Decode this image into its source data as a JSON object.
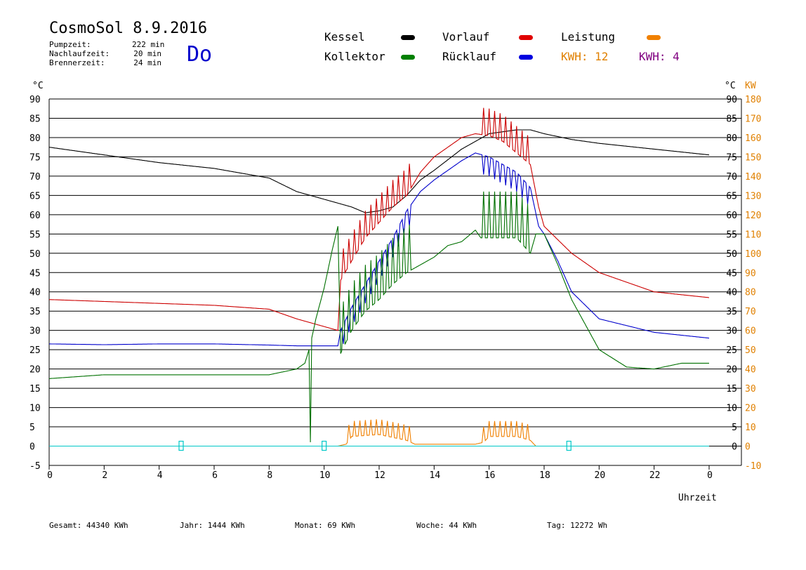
{
  "header": {
    "title": "CosmoSol 8.9.2016",
    "weekday": "Do",
    "stats": [
      {
        "label": "Pumpzeit:",
        "value": "222 min"
      },
      {
        "label": "Nachlaufzeit:",
        "value": "20 min"
      },
      {
        "label": "Brennerzeit:",
        "value": "24 min"
      }
    ]
  },
  "legend": {
    "kessel": {
      "label": "Kessel",
      "color": "#000000"
    },
    "kollektor": {
      "label": "Kollektor",
      "color": "#008000"
    },
    "vorlauf": {
      "label": "Vorlauf",
      "color": "#e00000"
    },
    "ruecklauf": {
      "label": "Rücklauf",
      "color": "#0000e0"
    },
    "leistung": {
      "label": "Leistung",
      "color": "#f08000"
    },
    "kwh_orange": "KWH: 12",
    "kwh_purple": "KWH: 4",
    "kwh_orange_color": "#e08000",
    "kwh_purple_color": "#800080"
  },
  "axes": {
    "left_unit": "°C",
    "right_unit": "°C",
    "right_unit_kw": "KW",
    "xlabel": "Uhrzeit"
  },
  "footer": {
    "gesamt": "Gesamt:  44340 KWh",
    "jahr": "Jahr:  1444 KWh",
    "monat": "Monat:    69 KWh",
    "woche": "Woche:    44 KWh",
    "tag": "Tag:  12272 Wh"
  },
  "chart_data": {
    "type": "line",
    "title": "CosmoSol 8.9.2016",
    "xlabel": "Uhrzeit",
    "ylabel": "°C",
    "xlim": [
      0,
      24
    ],
    "ylim": [
      -5,
      90
    ],
    "y2lim": [
      -10,
      180
    ],
    "y2label": "KW",
    "x_ticks": [
      "0",
      "2",
      "4",
      "6",
      "8",
      "10",
      "12",
      "14",
      "16",
      "18",
      "20",
      "22",
      "0"
    ],
    "y_ticks": [
      "-5",
      "0",
      "5",
      "10",
      "15",
      "20",
      "25",
      "30",
      "35",
      "40",
      "45",
      "50",
      "55",
      "60",
      "65",
      "70",
      "75",
      "80",
      "85",
      "90"
    ],
    "y_right_ticks": [
      "0",
      "5",
      "10",
      "15",
      "20",
      "25",
      "30",
      "35",
      "40",
      "45",
      "50",
      "55",
      "60",
      "65",
      "70",
      "75",
      "80",
      "85",
      "90"
    ],
    "y2_ticks": [
      "-10",
      "0",
      "10",
      "20",
      "30",
      "40",
      "50",
      "60",
      "70",
      "80",
      "90",
      "100",
      "110",
      "120",
      "130",
      "140",
      "150",
      "160",
      "170",
      "180"
    ],
    "grid": true,
    "series": [
      {
        "name": "Kessel",
        "color": "#000000",
        "x": [
          0,
          2,
          4,
          6,
          8,
          9,
          10,
          11,
          11.5,
          12,
          12.5,
          13,
          13.5,
          14,
          15,
          15.5,
          16,
          17,
          17.5,
          18,
          19,
          20,
          22,
          24
        ],
        "y": [
          77.5,
          75.5,
          73.5,
          72,
          69.5,
          66,
          64,
          62,
          60.5,
          61,
          62,
          65,
          69,
          71.5,
          77,
          79,
          81,
          82,
          82,
          81,
          79.5,
          78.5,
          77,
          75.5
        ],
        "spikes": [],
        "spike_amp": 0
      },
      {
        "name": "Vorlauf",
        "color": "#cc0000",
        "x": [
          0,
          2,
          4,
          6,
          8,
          9,
          10,
          10.5,
          10.6,
          11,
          11.5,
          12,
          12.5,
          13,
          13.5,
          14,
          15,
          15.5,
          16,
          16.5,
          17,
          17.5,
          17.8,
          18,
          19,
          20,
          22,
          24
        ],
        "y": [
          38,
          37.5,
          37,
          36.5,
          35.5,
          33,
          31,
          30,
          43,
          48,
          54,
          58,
          62,
          65,
          71,
          75,
          80,
          81,
          80.5,
          79,
          76,
          73,
          62,
          57,
          50,
          45,
          40,
          38.5
        ],
        "spikes": [
          10.7,
          10.9,
          11.1,
          11.3,
          11.5,
          11.7,
          11.9,
          12.1,
          12.3,
          12.5,
          12.7,
          12.9,
          13.1,
          15.8,
          16.0,
          16.2,
          16.4,
          16.6,
          16.8,
          17.0,
          17.2,
          17.4
        ],
        "spike_amp": 7
      },
      {
        "name": "Rücklauf",
        "color": "#0000cc",
        "x": [
          0,
          2,
          4,
          6,
          8,
          9,
          10,
          10.5,
          10.6,
          11,
          11.5,
          12,
          12.5,
          13,
          13.5,
          14,
          15,
          15.5,
          16,
          16.5,
          17,
          17.5,
          17.8,
          18,
          18.5,
          19,
          20,
          22,
          24
        ],
        "y": [
          26.5,
          26.3,
          26.5,
          26.5,
          26.2,
          26,
          26,
          26,
          30,
          36,
          42,
          48,
          54,
          61,
          66,
          69,
          74,
          76,
          75,
          73,
          71,
          67,
          57,
          55,
          48,
          40,
          33,
          29.5,
          28
        ],
        "spikes": [
          10.7,
          10.9,
          11.1,
          11.3,
          11.5,
          11.7,
          11.9,
          12.1,
          12.3,
          12.5,
          12.7,
          12.9,
          13.1,
          15.8,
          16.0,
          16.2,
          16.4,
          16.6,
          16.8,
          17.0,
          17.2,
          17.4
        ],
        "spike_amp": -5
      },
      {
        "name": "Kollektor",
        "color": "#007000",
        "x": [
          0,
          2,
          4,
          6,
          8,
          9,
          9.3,
          9.45,
          9.5,
          9.55,
          9.7,
          10,
          10.3,
          10.5,
          10.6,
          11,
          11.5,
          12,
          12.5,
          13,
          13.5,
          14,
          14.5,
          15,
          15.5,
          15.7,
          16,
          16.5,
          17,
          17.5,
          17.7,
          18,
          18.5,
          19,
          20,
          21,
          22,
          23,
          24
        ],
        "y": [
          17.5,
          18.5,
          18.5,
          18.5,
          18.5,
          20,
          21.5,
          25,
          1,
          28,
          33,
          41,
          51,
          57,
          24,
          30,
          35,
          38,
          42,
          45,
          47,
          49,
          52,
          53,
          56,
          54,
          54,
          54,
          54,
          50,
          55,
          55,
          47,
          38,
          25,
          20.5,
          20,
          21.5,
          21.5
        ],
        "spikes": [
          10.7,
          10.9,
          11.1,
          11.3,
          11.5,
          11.7,
          11.9,
          12.1,
          12.3,
          12.5,
          12.7,
          12.9,
          13.1,
          15.8,
          16.0,
          16.2,
          16.4,
          16.6,
          16.8,
          17.0,
          17.2,
          17.4
        ],
        "spike_amp": 12
      },
      {
        "name": "Leistung",
        "color": "#f08000",
        "axis": "right",
        "x": [
          0,
          10.5,
          10.8,
          11,
          12,
          13,
          13.3,
          15.5,
          15.8,
          16,
          17,
          17.5,
          17.7,
          24
        ],
        "y": [
          0,
          0,
          1,
          5,
          6,
          3,
          1,
          1,
          2,
          5,
          5,
          3,
          0,
          0
        ],
        "spikes": [
          10.9,
          11.1,
          11.3,
          11.5,
          11.7,
          11.9,
          12.1,
          12.3,
          12.5,
          12.7,
          12.9,
          13.1,
          15.8,
          16.0,
          16.2,
          16.4,
          16.6,
          16.8,
          17.0,
          17.2,
          17.4
        ],
        "spike_amp": 8
      },
      {
        "name": "cyan",
        "color": "#00c8c8",
        "x": [
          0,
          24
        ],
        "y": [
          0,
          0
        ],
        "spikes": [],
        "spike_amp": 0
      }
    ],
    "markers_x": [
      4.8,
      10,
      18.9
    ]
  }
}
